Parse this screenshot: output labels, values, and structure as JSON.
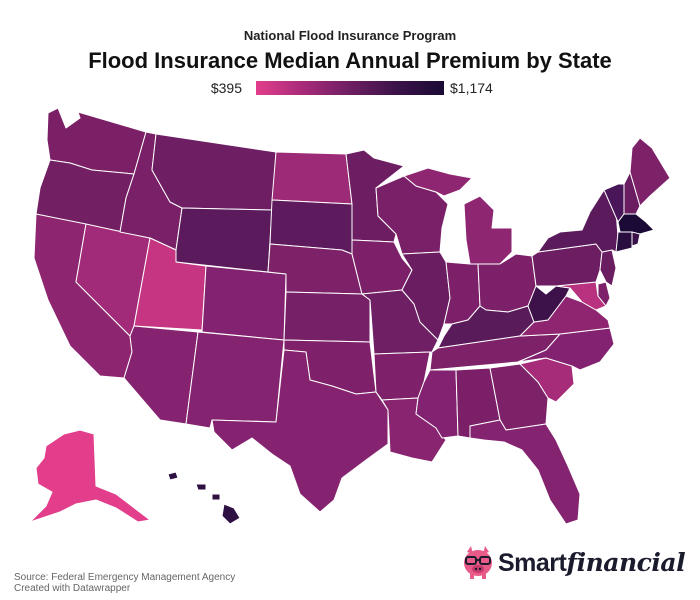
{
  "header": {
    "subtitle": "National Flood Insurance Program",
    "title": "Flood Insurance Median Annual Premium by State"
  },
  "legend": {
    "min_label": "$395",
    "max_label": "$1,174",
    "min_color": "#e23e8c",
    "max_color": "#1c0a36"
  },
  "footer": {
    "source": "Source: Federal Emergency Management Agency",
    "credit": "Created with Datawrapper"
  },
  "brand": {
    "name_part1": "Smart",
    "name_part2": "financial",
    "logo_icon": "pig-with-glasses-icon"
  },
  "map_colors": {
    "WA": "#7b2066",
    "OR": "#721f64",
    "CA": "#8d2570",
    "NV": "#a12b78",
    "ID": "#7a2068",
    "MT": "#6e1e63",
    "WY": "#5a1a5c",
    "UT": "#c63582",
    "AZ": "#852370",
    "NM": "#842370",
    "CO": "#822270",
    "ND": "#9c2a77",
    "SD": "#5d1b5d",
    "NE": "#7d2169",
    "KS": "#762068",
    "OK": "#7f216a",
    "TX": "#852370",
    "MN": "#6d1e63",
    "IA": "#7c2069",
    "MO": "#6f1f63",
    "AR": "#7f216a",
    "LA": "#892470",
    "WI": "#7a2068",
    "IL": "#6a1d61",
    "MS": "#822270",
    "MI": "#8f2671",
    "IN": "#7b2069",
    "OH": "#7c2069",
    "KY": "#5a1b5b",
    "TN": "#7d2169",
    "AL": "#7b2068",
    "GA": "#7d2169",
    "FL": "#842370",
    "SC": "#a62c7a",
    "NC": "#822270",
    "VA": "#8f2571",
    "WV": "#3d124b",
    "MD": "#b8327f",
    "DE": "#7e216a",
    "NJ": "#6a1d61",
    "PA": "#6d1e63",
    "NY": "#5b1a5c",
    "CT": "#2a0e40",
    "RI": "#3a1249",
    "MA": "#1c0a36",
    "VT": "#4a165a",
    "NH": "#6a1d61",
    "ME": "#7d2169",
    "AK": "#e23e8c",
    "HI": "#2e1043"
  }
}
